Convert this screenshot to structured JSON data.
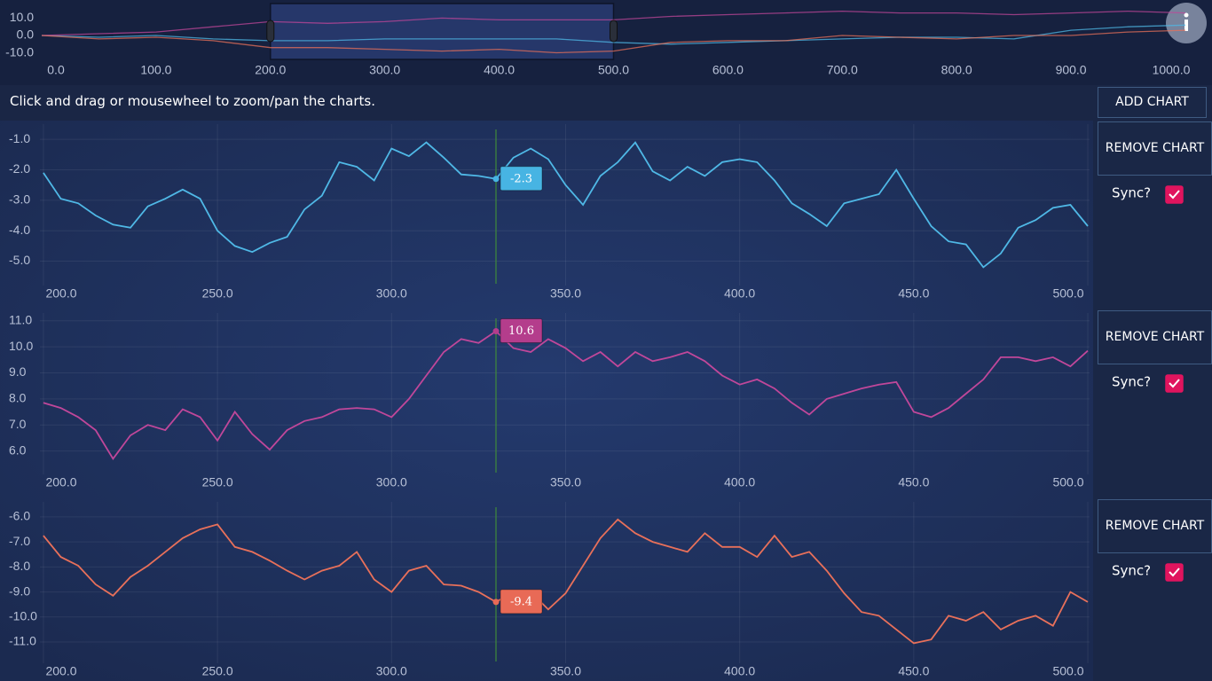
{
  "instruction": "Click and drag or mousewheel to zoom/pan the charts.",
  "add_chart": "ADD CHART",
  "chart_data": [
    {
      "type": "line",
      "grid": false,
      "x": [
        0,
        50,
        100,
        150,
        200,
        250,
        300,
        350,
        400,
        450,
        500,
        550,
        600,
        650,
        700,
        750,
        800,
        850,
        900,
        950,
        1000
      ],
      "xlim": [
        0,
        1000
      ],
      "ylim": [
        -13.3,
        17.9
      ],
      "xticks": [
        {
          "value": 0,
          "label": "0.0"
        },
        {
          "value": 100,
          "label": "100.0"
        },
        {
          "value": 200,
          "label": "200.0"
        },
        {
          "value": 300,
          "label": "300.0"
        },
        {
          "value": 400,
          "label": "400.0"
        },
        {
          "value": 500,
          "label": "500.0"
        },
        {
          "value": 600,
          "label": "600.0"
        },
        {
          "value": 700,
          "label": "700.0"
        },
        {
          "value": 800,
          "label": "800.0"
        },
        {
          "value": 900,
          "label": "900.0"
        },
        {
          "value": 1000,
          "label": "1000.0"
        }
      ],
      "yticks": [
        {
          "value": 10,
          "label": "10.0"
        },
        {
          "value": 0,
          "label": "0.0"
        },
        {
          "value": -10,
          "label": "-10.0"
        }
      ],
      "selection": [
        200,
        500
      ],
      "series": [
        {
          "color": "#4fb8e6",
          "values": [
            0,
            -1,
            0,
            -2,
            -3,
            -3,
            -2,
            -2,
            -2,
            -2,
            -4,
            -5,
            -4,
            -3,
            -2,
            -1,
            -1,
            -2,
            3,
            5,
            6
          ]
        },
        {
          "color": "#c0479a",
          "values": [
            0,
            1,
            2,
            5,
            8,
            7,
            8,
            10,
            9,
            9,
            9,
            11,
            12,
            13,
            14,
            13,
            13,
            12,
            13,
            14,
            13
          ]
        },
        {
          "color": "#e8705a",
          "values": [
            0,
            -2,
            -1,
            -3,
            -7,
            -7,
            -8,
            -9,
            -8,
            -10,
            -9,
            -4,
            -3,
            -3,
            0,
            -1,
            -2,
            0,
            0,
            2,
            3
          ]
        }
      ]
    },
    {
      "type": "line",
      "grid": true,
      "x": [
        200,
        205,
        210,
        215,
        220,
        225,
        230,
        235,
        240,
        245,
        250,
        255,
        260,
        265,
        270,
        275,
        280,
        285,
        290,
        295,
        300,
        305,
        310,
        315,
        320,
        325,
        330,
        335,
        340,
        345,
        350,
        355,
        360,
        365,
        370,
        375,
        380,
        385,
        390,
        395,
        400,
        405,
        410,
        415,
        420,
        425,
        430,
        435,
        440,
        445,
        450,
        455,
        460,
        465,
        470,
        475,
        480,
        485,
        490,
        495,
        500
      ],
      "xlim": [
        199,
        500.5
      ],
      "ylim": [
        -5.8,
        -0.5
      ],
      "xticks": [
        {
          "value": 200,
          "label": "200.0"
        },
        {
          "value": 250,
          "label": "250.0"
        },
        {
          "value": 300,
          "label": "300.0"
        },
        {
          "value": 350,
          "label": "350.0"
        },
        {
          "value": 400,
          "label": "400.0"
        },
        {
          "value": 450,
          "label": "450.0"
        },
        {
          "value": 500,
          "label": "500.0"
        }
      ],
      "yticks": [
        {
          "value": -1,
          "label": "-1.0"
        },
        {
          "value": -2,
          "label": "-2.0"
        },
        {
          "value": -3,
          "label": "-3.0"
        },
        {
          "value": -4,
          "label": "-4.0"
        },
        {
          "value": -5,
          "label": "-5.0"
        }
      ],
      "series": [
        {
          "color": "#4fb8e6",
          "values": [
            -2.1,
            -2.95,
            -3.1,
            -3.5,
            -3.8,
            -3.9,
            -3.2,
            -2.95,
            -2.65,
            -2.95,
            -4.0,
            -4.5,
            -4.7,
            -4.4,
            -4.2,
            -3.3,
            -2.85,
            -1.75,
            -1.9,
            -2.35,
            -1.3,
            -1.55,
            -1.1,
            -1.6,
            -2.15,
            -2.2,
            -2.3,
            -1.6,
            -1.3,
            -1.65,
            -2.5,
            -3.15,
            -2.2,
            -1.75,
            -1.1,
            -2.05,
            -2.35,
            -1.9,
            -2.2,
            -1.75,
            -1.65,
            -1.75,
            -2.35,
            -3.1,
            -3.45,
            -3.85,
            -3.1,
            -2.95,
            -2.8,
            -2.0,
            -2.95,
            -3.85,
            -4.35,
            -4.45,
            -5.2,
            -4.75,
            -3.9,
            -3.65,
            -3.25,
            -3.15,
            -3.85
          ]
        }
      ],
      "cursor": {
        "x": 330,
        "value": -2.3,
        "color": "#47b4e3"
      },
      "remove_button": "REMOVE CHART",
      "sync_label": "Sync?",
      "sync": true
    },
    {
      "type": "line",
      "grid": true,
      "x": [
        200,
        205,
        210,
        215,
        220,
        225,
        230,
        235,
        240,
        245,
        250,
        255,
        260,
        265,
        270,
        275,
        280,
        285,
        290,
        295,
        300,
        305,
        310,
        315,
        320,
        325,
        330,
        335,
        340,
        345,
        350,
        355,
        360,
        365,
        370,
        375,
        380,
        385,
        390,
        395,
        400,
        405,
        410,
        415,
        420,
        425,
        430,
        435,
        440,
        445,
        450,
        455,
        460,
        465,
        470,
        475,
        480,
        485,
        490,
        495,
        500
      ],
      "xlim": [
        199,
        500.5
      ],
      "ylim": [
        5.1,
        11.3
      ],
      "xticks": [
        {
          "value": 200,
          "label": "200.0"
        },
        {
          "value": 250,
          "label": "250.0"
        },
        {
          "value": 300,
          "label": "300.0"
        },
        {
          "value": 350,
          "label": "350.0"
        },
        {
          "value": 400,
          "label": "400.0"
        },
        {
          "value": 450,
          "label": "450.0"
        },
        {
          "value": 500,
          "label": "500.0"
        }
      ],
      "yticks": [
        {
          "value": 11,
          "label": "11.0"
        },
        {
          "value": 10,
          "label": "10.0"
        },
        {
          "value": 9,
          "label": "9.0"
        },
        {
          "value": 8,
          "label": "8.0"
        },
        {
          "value": 7,
          "label": "7.0"
        },
        {
          "value": 6,
          "label": "6.0"
        }
      ],
      "series": [
        {
          "color": "#c0479a",
          "values": [
            7.85,
            7.65,
            7.3,
            6.8,
            5.7,
            6.6,
            7.0,
            6.8,
            7.6,
            7.3,
            6.4,
            7.5,
            6.65,
            6.05,
            6.8,
            7.15,
            7.3,
            7.6,
            7.65,
            7.6,
            7.3,
            8.0,
            8.9,
            9.8,
            10.3,
            10.15,
            10.6,
            9.95,
            9.8,
            10.3,
            9.95,
            9.45,
            9.8,
            9.25,
            9.8,
            9.45,
            9.6,
            9.8,
            9.45,
            8.9,
            8.55,
            8.75,
            8.4,
            7.85,
            7.4,
            8.0,
            8.2,
            8.4,
            8.55,
            8.65,
            7.5,
            7.3,
            7.65,
            8.2,
            8.75,
            9.6,
            9.6,
            9.45,
            9.6,
            9.25,
            9.85
          ]
        }
      ],
      "cursor": {
        "x": 330,
        "value": 10.6,
        "color": "#b43d8c"
      },
      "remove_button": "REMOVE CHART",
      "sync_label": "Sync?",
      "sync": true
    },
    {
      "type": "line",
      "grid": true,
      "x": [
        200,
        205,
        210,
        215,
        220,
        225,
        230,
        235,
        240,
        245,
        250,
        255,
        260,
        265,
        270,
        275,
        280,
        285,
        290,
        295,
        300,
        305,
        310,
        315,
        320,
        325,
        330,
        335,
        340,
        345,
        350,
        355,
        360,
        365,
        370,
        375,
        380,
        385,
        390,
        395,
        400,
        405,
        410,
        415,
        420,
        425,
        430,
        435,
        440,
        445,
        450,
        455,
        460,
        465,
        470,
        475,
        480,
        485,
        490,
        495,
        500
      ],
      "xlim": [
        199,
        500.5
      ],
      "ylim": [
        -11.85,
        -5.4
      ],
      "xticks": [
        {
          "value": 200,
          "label": "200.0"
        },
        {
          "value": 250,
          "label": "250.0"
        },
        {
          "value": 300,
          "label": "300.0"
        },
        {
          "value": 350,
          "label": "350.0"
        },
        {
          "value": 400,
          "label": "400.0"
        },
        {
          "value": 450,
          "label": "450.0"
        },
        {
          "value": 500,
          "label": "500.0"
        }
      ],
      "yticks": [
        {
          "value": -6,
          "label": "-6.0"
        },
        {
          "value": -7,
          "label": "-7.0"
        },
        {
          "value": -8,
          "label": "-8.0"
        },
        {
          "value": -9,
          "label": "-9.0"
        },
        {
          "value": -10,
          "label": "-10.0"
        },
        {
          "value": -11,
          "label": "-11.0"
        }
      ],
      "series": [
        {
          "color": "#e8705a",
          "values": [
            -6.75,
            -7.6,
            -7.95,
            -8.7,
            -9.15,
            -8.4,
            -7.95,
            -7.4,
            -6.85,
            -6.5,
            -6.3,
            -7.2,
            -7.4,
            -7.75,
            -8.15,
            -8.5,
            -8.15,
            -7.95,
            -7.4,
            -8.5,
            -9.0,
            -8.15,
            -7.95,
            -8.7,
            -8.75,
            -9.0,
            -9.4,
            -9.0,
            -9.0,
            -9.7,
            -9.05,
            -7.95,
            -6.85,
            -6.1,
            -6.65,
            -7.0,
            -7.2,
            -7.4,
            -6.65,
            -7.2,
            -7.2,
            -7.6,
            -6.75,
            -7.6,
            -7.4,
            -8.15,
            -9.05,
            -9.8,
            -9.95,
            -10.5,
            -11.05,
            -10.9,
            -9.95,
            -10.15,
            -9.8,
            -10.5,
            -10.15,
            -9.95,
            -10.35,
            -9.0,
            -9.4
          ]
        }
      ],
      "cursor": {
        "x": 330,
        "value": -9.4,
        "color": "#e86a56"
      },
      "remove_button": "REMOVE CHART",
      "sync_label": "Sync?",
      "sync": true
    }
  ]
}
